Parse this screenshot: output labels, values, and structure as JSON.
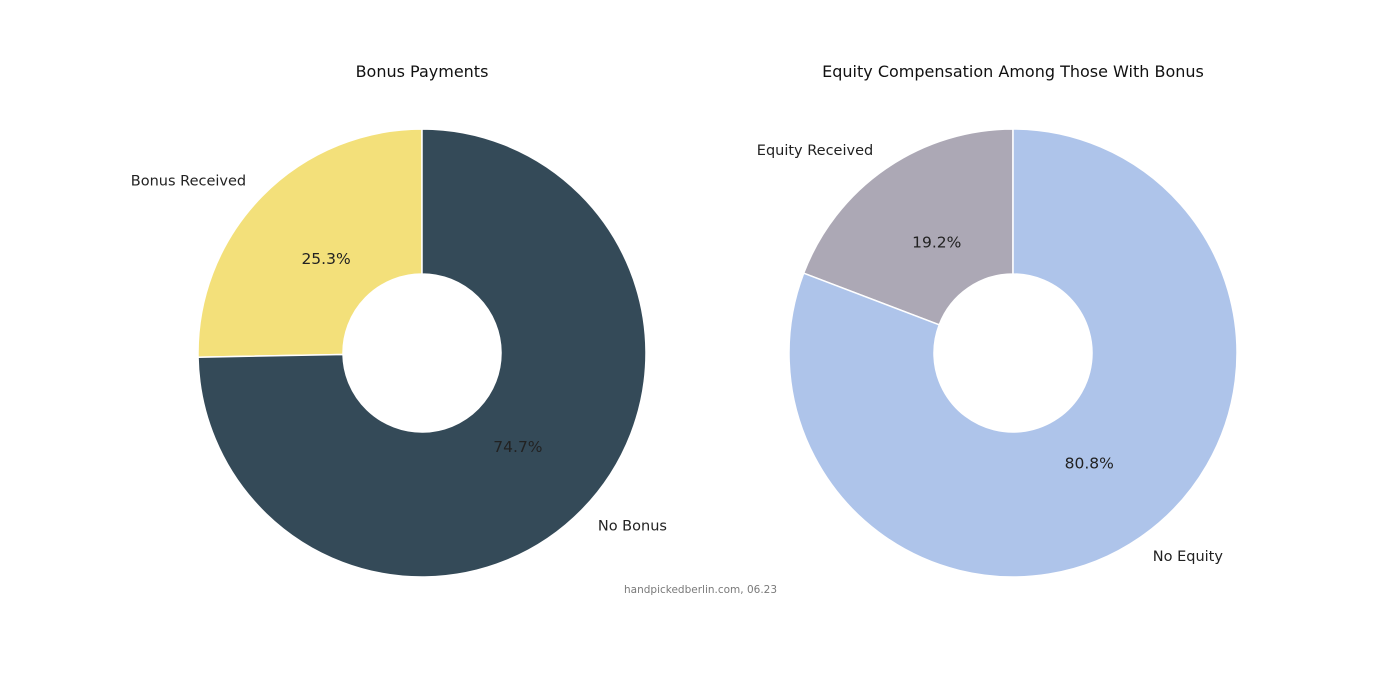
{
  "chart_data": [
    {
      "type": "pie",
      "title": "Bonus Payments",
      "hole": true,
      "start_angle_deg": 90,
      "direction": "counterclockwise",
      "slices": [
        {
          "label": "Bonus Received",
          "value": 25.3,
          "pct_label": "25.3%",
          "color": "#F3E07A"
        },
        {
          "label": "No Bonus",
          "value": 74.7,
          "pct_label": "74.7%",
          "color": "#344A58"
        }
      ]
    },
    {
      "type": "pie",
      "title": "Equity Compensation Among Those With Bonus",
      "hole": true,
      "start_angle_deg": 90,
      "direction": "counterclockwise",
      "slices": [
        {
          "label": "Equity Received",
          "value": 19.2,
          "pct_label": "19.2%",
          "color": "#ACA8B5"
        },
        {
          "label": "No Equity",
          "value": 80.8,
          "pct_label": "80.8%",
          "color": "#AEC4EA"
        }
      ]
    }
  ],
  "source_note": "handpickedberlin.com, 06.23"
}
